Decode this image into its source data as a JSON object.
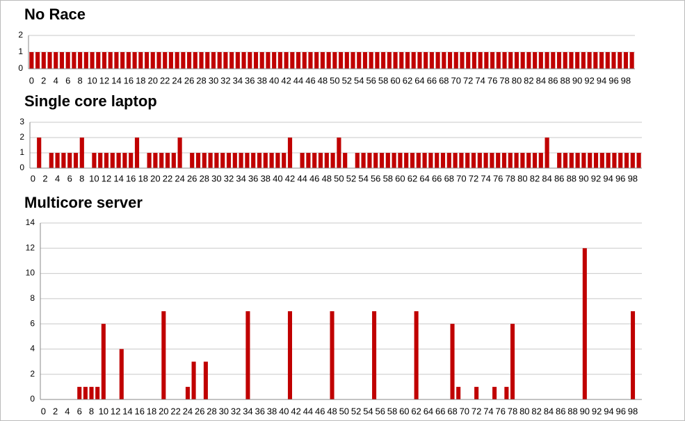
{
  "chart_data": [
    {
      "type": "bar",
      "title": "No Race",
      "categories": [
        "0",
        null,
        "2",
        null,
        "4",
        null,
        "6",
        null,
        "8",
        null,
        "10",
        null,
        "12",
        null,
        "14",
        null,
        "16",
        null,
        "18",
        null,
        "20",
        null,
        "22",
        null,
        "24",
        null,
        "26",
        null,
        "28",
        null,
        "30",
        null,
        "32",
        null,
        "34",
        null,
        "36",
        null,
        "38",
        null,
        "40",
        null,
        "42",
        null,
        "44",
        null,
        "46",
        null,
        "48",
        null,
        "50",
        null,
        "52",
        null,
        "54",
        null,
        "56",
        null,
        "58",
        null,
        "60",
        null,
        "62",
        null,
        "64",
        null,
        "66",
        null,
        "68",
        null,
        "70",
        null,
        "72",
        null,
        "74",
        null,
        "76",
        null,
        "78",
        null,
        "80",
        null,
        "82",
        null,
        "84",
        null,
        "86",
        null,
        "88",
        null,
        "90",
        null,
        "92",
        null,
        "94",
        null,
        "96",
        null,
        "98",
        null
      ],
      "values": [
        1,
        1,
        1,
        1,
        1,
        1,
        1,
        1,
        1,
        1,
        1,
        1,
        1,
        1,
        1,
        1,
        1,
        1,
        1,
        1,
        1,
        1,
        1,
        1,
        1,
        1,
        1,
        1,
        1,
        1,
        1,
        1,
        1,
        1,
        1,
        1,
        1,
        1,
        1,
        1,
        1,
        1,
        1,
        1,
        1,
        1,
        1,
        1,
        1,
        1,
        1,
        1,
        1,
        1,
        1,
        1,
        1,
        1,
        1,
        1,
        1,
        1,
        1,
        1,
        1,
        1,
        1,
        1,
        1,
        1,
        1,
        1,
        1,
        1,
        1,
        1,
        1,
        1,
        1,
        1,
        1,
        1,
        1,
        1,
        1,
        1,
        1,
        1,
        1,
        1,
        1,
        1,
        1,
        1,
        1,
        1,
        1,
        1,
        1,
        1
      ],
      "color": "#c00000",
      "ylim": [
        0,
        2
      ],
      "yticks": [
        0,
        1,
        2
      ],
      "grid": true
    },
    {
      "type": "bar",
      "title": "Single core laptop",
      "categories": [
        "0",
        null,
        "2",
        null,
        "4",
        null,
        "6",
        null,
        "8",
        null,
        "10",
        null,
        "12",
        null,
        "14",
        null,
        "16",
        null,
        "18",
        null,
        "20",
        null,
        "22",
        null,
        "24",
        null,
        "26",
        null,
        "28",
        null,
        "30",
        null,
        "32",
        null,
        "34",
        null,
        "36",
        null,
        "38",
        null,
        "40",
        null,
        "42",
        null,
        "44",
        null,
        "46",
        null,
        "48",
        null,
        "50",
        null,
        "52",
        null,
        "54",
        null,
        "56",
        null,
        "58",
        null,
        "60",
        null,
        "62",
        null,
        "64",
        null,
        "66",
        null,
        "68",
        null,
        "70",
        null,
        "72",
        null,
        "74",
        null,
        "76",
        null,
        "78",
        null,
        "80",
        null,
        "82",
        null,
        "84",
        null,
        "86",
        null,
        "88",
        null,
        "90",
        null,
        "92",
        null,
        "94",
        null,
        "96",
        null,
        "98",
        null
      ],
      "values": [
        0,
        2,
        0,
        1,
        1,
        1,
        1,
        1,
        2,
        0,
        1,
        1,
        1,
        1,
        1,
        1,
        1,
        2,
        0,
        1,
        1,
        1,
        1,
        1,
        2,
        0,
        1,
        1,
        1,
        1,
        1,
        1,
        1,
        1,
        1,
        1,
        1,
        1,
        1,
        1,
        1,
        1,
        2,
        0,
        1,
        1,
        1,
        1,
        1,
        1,
        2,
        1,
        0,
        1,
        1,
        1,
        1,
        1,
        1,
        1,
        1,
        1,
        1,
        1,
        1,
        1,
        1,
        1,
        1,
        1,
        1,
        1,
        1,
        1,
        1,
        1,
        1,
        1,
        1,
        1,
        1,
        1,
        1,
        1,
        2,
        0,
        1,
        1,
        1,
        1,
        1,
        1,
        1,
        1,
        1,
        1,
        1,
        1,
        1,
        1
      ],
      "color": "#c00000",
      "ylim": [
        0,
        3
      ],
      "yticks": [
        0,
        1,
        2,
        3
      ],
      "grid": true
    },
    {
      "type": "bar",
      "title": "Multicore server",
      "categories": [
        "0",
        null,
        "2",
        null,
        "4",
        null,
        "6",
        null,
        "8",
        null,
        "10",
        null,
        "12",
        null,
        "14",
        null,
        "16",
        null,
        "18",
        null,
        "20",
        null,
        "22",
        null,
        "24",
        null,
        "26",
        null,
        "28",
        null,
        "30",
        null,
        "32",
        null,
        "34",
        null,
        "36",
        null,
        "38",
        null,
        "40",
        null,
        "42",
        null,
        "44",
        null,
        "46",
        null,
        "48",
        null,
        "50",
        null,
        "52",
        null,
        "54",
        null,
        "56",
        null,
        "58",
        null,
        "60",
        null,
        "62",
        null,
        "64",
        null,
        "66",
        null,
        "68",
        null,
        "70",
        null,
        "72",
        null,
        "74",
        null,
        "76",
        null,
        "78",
        null,
        "80",
        null,
        "82",
        null,
        "84",
        null,
        "86",
        null,
        "88",
        null,
        "90",
        null,
        "92",
        null,
        "94",
        null,
        "96",
        null,
        "98",
        null
      ],
      "values": [
        0,
        0,
        0,
        0,
        0,
        0,
        1,
        1,
        1,
        1,
        6,
        0,
        0,
        4,
        0,
        0,
        0,
        0,
        0,
        0,
        7,
        0,
        0,
        0,
        1,
        3,
        0,
        3,
        0,
        0,
        0,
        0,
        0,
        0,
        7,
        0,
        0,
        0,
        0,
        0,
        0,
        7,
        0,
        0,
        0,
        0,
        0,
        0,
        7,
        0,
        0,
        0,
        0,
        0,
        0,
        7,
        0,
        0,
        0,
        0,
        0,
        0,
        7,
        0,
        0,
        0,
        0,
        0,
        6,
        1,
        0,
        0,
        1,
        0,
        0,
        1,
        0,
        1,
        6,
        0,
        0,
        0,
        0,
        0,
        0,
        0,
        0,
        0,
        0,
        0,
        12,
        0,
        0,
        0,
        0,
        0,
        0,
        0,
        7,
        0
      ],
      "color": "#c00000",
      "ylim": [
        0,
        14
      ],
      "yticks": [
        0,
        2,
        4,
        6,
        8,
        10,
        12,
        14
      ],
      "grid": true
    }
  ]
}
